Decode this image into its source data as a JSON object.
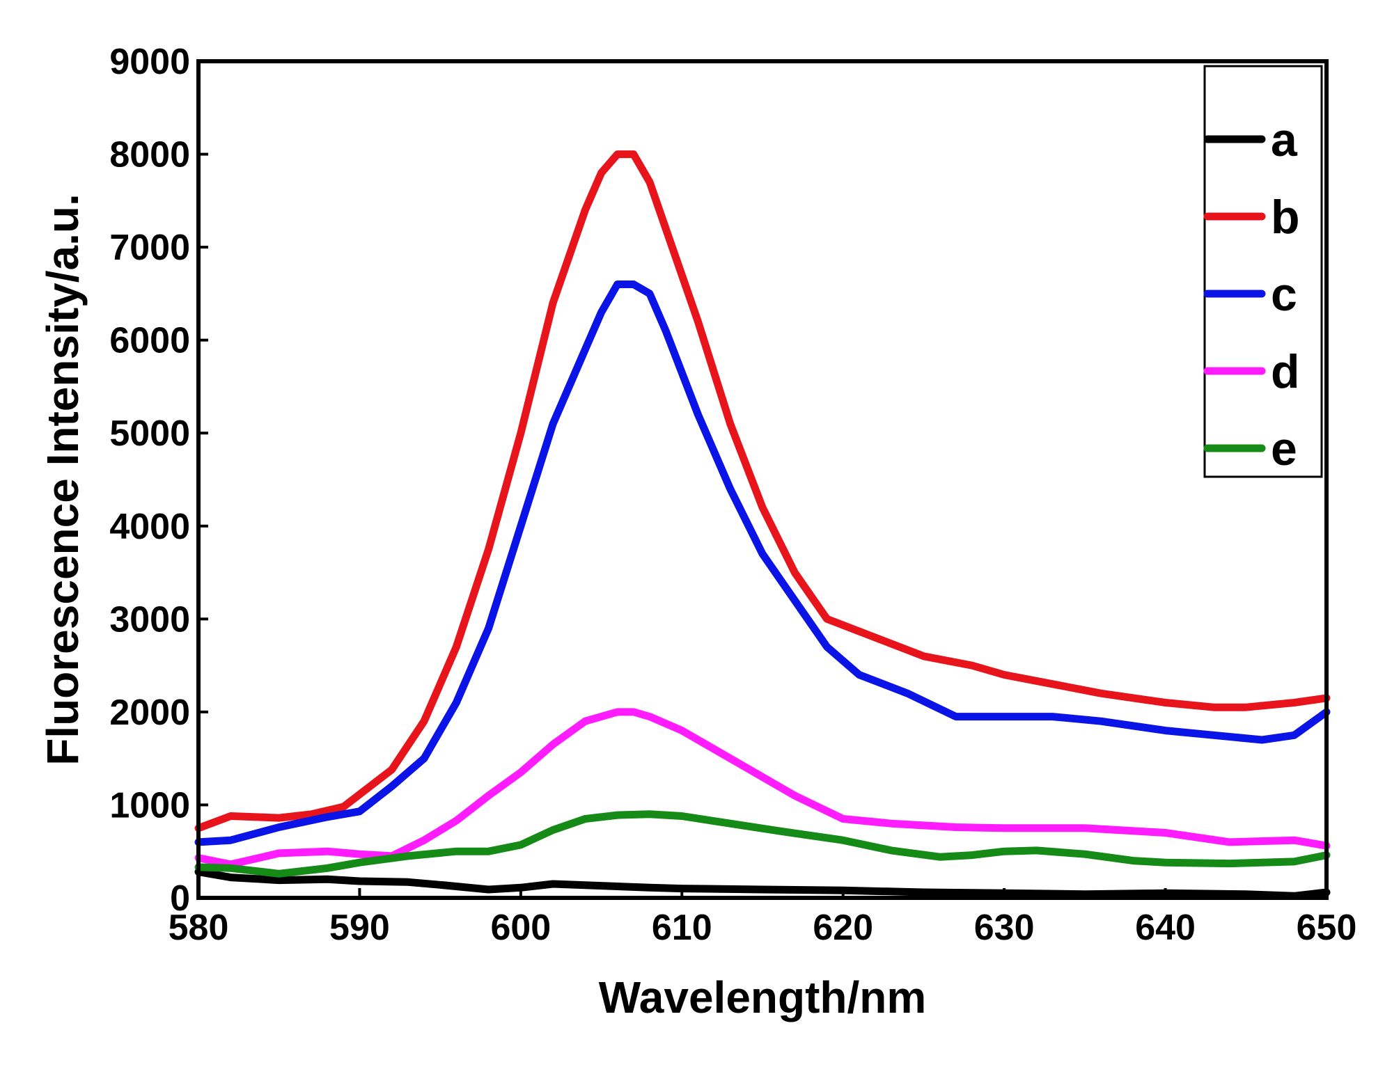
{
  "chart_data": {
    "type": "line",
    "title": "",
    "xlabel": "Wavelength/nm",
    "ylabel": "Fluorescence Intensity/a.u.",
    "xlim": [
      580,
      650
    ],
    "ylim": [
      0,
      9000
    ],
    "grid": false,
    "legend_position": "top-right",
    "x_ticks": [
      "580",
      "590",
      "600",
      "610",
      "620",
      "630",
      "640",
      "650"
    ],
    "y_ticks": [
      "0",
      "1000",
      "2000",
      "3000",
      "4000",
      "5000",
      "6000",
      "7000",
      "8000",
      "9000"
    ],
    "series": [
      {
        "name": "a",
        "color": "#000000",
        "x": [
          580,
          582,
          585,
          588,
          590,
          593,
          595,
          598,
          600,
          602,
          605,
          608,
          610,
          615,
          620,
          625,
          630,
          635,
          640,
          645,
          648,
          650
        ],
        "y": [
          280,
          220,
          190,
          200,
          180,
          170,
          140,
          90,
          110,
          150,
          130,
          110,
          100,
          90,
          80,
          60,
          50,
          40,
          50,
          40,
          20,
          60
        ]
      },
      {
        "name": "b",
        "color": "#e8141b",
        "x": [
          580,
          582,
          585,
          587,
          589,
          592,
          594,
          596,
          598,
          600,
          602,
          604,
          605,
          606,
          607,
          608,
          609,
          611,
          613,
          615,
          617,
          619,
          622,
          625,
          628,
          630,
          633,
          636,
          640,
          643,
          645,
          648,
          650
        ],
        "y": [
          750,
          880,
          860,
          900,
          980,
          1380,
          1900,
          2700,
          3750,
          5000,
          6400,
          7400,
          7800,
          8000,
          8000,
          7700,
          7200,
          6200,
          5100,
          4200,
          3500,
          3000,
          2800,
          2600,
          2500,
          2400,
          2300,
          2200,
          2100,
          2050,
          2050,
          2100,
          2150
        ]
      },
      {
        "name": "c",
        "color": "#0a14e6",
        "x": [
          580,
          582,
          585,
          588,
          590,
          592,
          594,
          596,
          598,
          600,
          602,
          604,
          605,
          606,
          607,
          608,
          609,
          611,
          613,
          615,
          617,
          619,
          621,
          624,
          627,
          630,
          633,
          636,
          640,
          643,
          646,
          648,
          650
        ],
        "y": [
          600,
          620,
          760,
          870,
          930,
          1200,
          1500,
          2100,
          2900,
          4000,
          5100,
          5900,
          6300,
          6600,
          6600,
          6500,
          6100,
          5200,
          4400,
          3700,
          3200,
          2700,
          2400,
          2200,
          1950,
          1950,
          1950,
          1900,
          1800,
          1750,
          1700,
          1750,
          2000
        ]
      },
      {
        "name": "d",
        "color": "#ff1cff",
        "x": [
          580,
          582,
          585,
          588,
          590,
          592,
          594,
          596,
          598,
          600,
          602,
          604,
          606,
          607,
          608,
          610,
          612,
          614,
          617,
          620,
          623,
          627,
          630,
          635,
          640,
          644,
          648,
          650
        ],
        "y": [
          430,
          360,
          480,
          500,
          470,
          450,
          620,
          830,
          1100,
          1350,
          1650,
          1900,
          2000,
          2000,
          1950,
          1800,
          1600,
          1400,
          1100,
          850,
          800,
          760,
          750,
          750,
          700,
          600,
          620,
          560
        ]
      },
      {
        "name": "e",
        "color": "#168a16",
        "x": [
          580,
          582,
          585,
          588,
          590,
          593,
          596,
          598,
          600,
          602,
          604,
          606,
          608,
          610,
          613,
          616,
          620,
          623,
          626,
          628,
          630,
          632,
          635,
          638,
          640,
          644,
          648,
          650
        ],
        "y": [
          330,
          320,
          260,
          320,
          380,
          450,
          500,
          500,
          570,
          730,
          850,
          890,
          900,
          880,
          800,
          720,
          620,
          510,
          440,
          460,
          500,
          510,
          470,
          400,
          380,
          370,
          390,
          460
        ]
      }
    ]
  }
}
